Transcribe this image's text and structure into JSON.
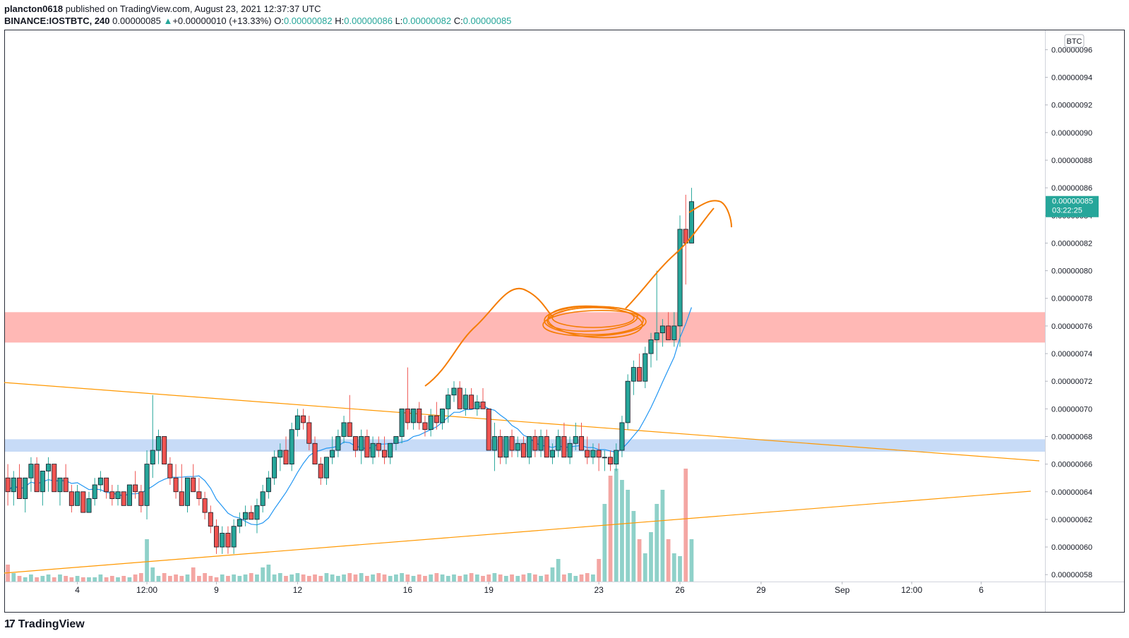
{
  "header": {
    "user": "plancton0618",
    "published_text": "published on TradingView.com, August 23, 2021 12:37:37 UTC",
    "symbol": "BINANCE:IOSTBTC, 240",
    "last": "0.00000085",
    "change_arrow": "▲",
    "change": "+0.00000010 (+13.33%)",
    "o_label": "O:",
    "o_value": "0.00000082",
    "h_label": "H:",
    "h_value": "0.00000086",
    "l_label": "L:",
    "l_value": "0.00000082",
    "c_label": "C:",
    "c_value": "0.00000085"
  },
  "colors": {
    "up": "#26a69a",
    "down": "#ef5350",
    "ma": "#2196f3",
    "trend": "#ff9800",
    "zone_resistance": "#ffb8b5",
    "zone_support": "#c7dbf7",
    "vol_up": "#8fd1c9",
    "vol_down": "#f4a6a3",
    "drawing": "#f57c00"
  },
  "footer": {
    "logo_text": "TradingView",
    "logo_icon": "tradingview-logo-icon"
  },
  "chart_data": {
    "type": "candlestick",
    "interval": "240",
    "currency_label": "BTC",
    "current_price_label": "0.00000085",
    "countdown": "03:22:25",
    "y_ticks": [
      "0.00000096",
      "0.00000094",
      "0.00000092",
      "0.00000090",
      "0.00000088",
      "0.00000086",
      "0.00000084",
      "0.00000082",
      "0.00000080",
      "0.00000078",
      "0.00000076",
      "0.00000074",
      "0.00000072",
      "0.00000070",
      "0.00000068",
      "0.00000066",
      "0.00000064",
      "0.00000062",
      "0.00000060",
      "0.00000058"
    ],
    "ylim": [
      5.75e-07,
      9.74e-07
    ],
    "x_ticks": [
      {
        "label": "4",
        "bar": 12
      },
      {
        "label": "12:00",
        "bar": 24
      },
      {
        "label": "9",
        "bar": 36
      },
      {
        "label": "12",
        "bar": 50
      },
      {
        "label": "16",
        "bar": 69
      },
      {
        "label": "19",
        "bar": 83
      },
      {
        "label": "23",
        "bar": 102
      },
      {
        "label": "26",
        "bar": 116
      },
      {
        "label": "29",
        "bar": 130
      },
      {
        "label": "Sep",
        "bar": 144
      },
      {
        "label": "12:00",
        "bar": 156
      },
      {
        "label": "6",
        "bar": 168
      }
    ],
    "x_range_bars": [
      -0.5,
      179
    ],
    "candles": [
      [
        65,
        66,
        63,
        64
      ],
      [
        64,
        65.5,
        63,
        65
      ],
      [
        65,
        66,
        63.5,
        63.5
      ],
      [
        63.5,
        65,
        62.5,
        65
      ],
      [
        65,
        66.5,
        64,
        66
      ],
      [
        66,
        66.5,
        64,
        64
      ],
      [
        64,
        65.5,
        63,
        65.5
      ],
      [
        65.5,
        66.5,
        64,
        66
      ],
      [
        66,
        66,
        64,
        64
      ],
      [
        64,
        65,
        63,
        65
      ],
      [
        65,
        66,
        64,
        64
      ],
      [
        64,
        64.5,
        62.5,
        63
      ],
      [
        63,
        64.5,
        63,
        64
      ],
      [
        64,
        64,
        62.5,
        62.5
      ],
      [
        62.5,
        64,
        62.5,
        63.5
      ],
      [
        63.5,
        65,
        63,
        64.5
      ],
      [
        64.5,
        65.5,
        64,
        65
      ],
      [
        65,
        65,
        63.5,
        64
      ],
      [
        64,
        64.5,
        63,
        63.5
      ],
      [
        63.5,
        64.5,
        63,
        64
      ],
      [
        64,
        64,
        63,
        63
      ],
      [
        63,
        64.5,
        63,
        64.5
      ],
      [
        64.5,
        65.5,
        63.5,
        64
      ],
      [
        64,
        64.5,
        62.5,
        63
      ],
      [
        63,
        67,
        62,
        66
      ],
      [
        66,
        71,
        65,
        67
      ],
      [
        67,
        68.5,
        66,
        68
      ],
      [
        68,
        68,
        66,
        66
      ],
      [
        66,
        66.5,
        64.5,
        65
      ],
      [
        65,
        66,
        63.5,
        64
      ],
      [
        64,
        66,
        63,
        63
      ],
      [
        63,
        65,
        62.5,
        65
      ],
      [
        65,
        66,
        64,
        64
      ],
      [
        64,
        65,
        63,
        63.5
      ],
      [
        63.5,
        64,
        62,
        62.5
      ],
      [
        62.5,
        63,
        61,
        61.5
      ],
      [
        61.5,
        62,
        59.5,
        60
      ],
      [
        60,
        61.5,
        59.5,
        61
      ],
      [
        61,
        61.5,
        59.5,
        60
      ],
      [
        60,
        62,
        59.5,
        61.5
      ],
      [
        61.5,
        62.5,
        61,
        62
      ],
      [
        62,
        63,
        61.5,
        62.5
      ],
      [
        62.5,
        63,
        62,
        62
      ],
      [
        62,
        63.5,
        61,
        63
      ],
      [
        63,
        64.5,
        62.5,
        64
      ],
      [
        64,
        65.5,
        63.5,
        65
      ],
      [
        65,
        67,
        64.5,
        66.5
      ],
      [
        66.5,
        67.5,
        65.5,
        67
      ],
      [
        67,
        68,
        66,
        66
      ],
      [
        66,
        69,
        65.5,
        68.5
      ],
      [
        68.5,
        70,
        68,
        69.5
      ],
      [
        69.5,
        70,
        68.5,
        69
      ],
      [
        69,
        69.5,
        67,
        67.5
      ],
      [
        67.5,
        68,
        66,
        66
      ],
      [
        66,
        66.5,
        64.5,
        65
      ],
      [
        65,
        66.5,
        64.5,
        66.5
      ],
      [
        66.5,
        68,
        66,
        67
      ],
      [
        67,
        68.5,
        66.5,
        68
      ],
      [
        68,
        69.5,
        67.5,
        69
      ],
      [
        69,
        71,
        68,
        68
      ],
      [
        68,
        68,
        66.5,
        67
      ],
      [
        67,
        68.5,
        66,
        68
      ],
      [
        68,
        68.5,
        66.5,
        66.5
      ],
      [
        66.5,
        68,
        66,
        67.5
      ],
      [
        67.5,
        68,
        66.5,
        67
      ],
      [
        67,
        68,
        66,
        66.5
      ],
      [
        66.5,
        67.5,
        66,
        67.5
      ],
      [
        67.5,
        68,
        67,
        68
      ],
      [
        68,
        70,
        67.5,
        70
      ],
      [
        70,
        73,
        68.5,
        69
      ],
      [
        69,
        70,
        68.5,
        70
      ],
      [
        70,
        70.5,
        68.5,
        69
      ],
      [
        69,
        69.5,
        68,
        68.5
      ],
      [
        68.5,
        70,
        68,
        69.5
      ],
      [
        69.5,
        70.5,
        68.5,
        69
      ],
      [
        69,
        70,
        68.5,
        70
      ],
      [
        70,
        71.5,
        69,
        71
      ],
      [
        71,
        72,
        70.5,
        71.5
      ],
      [
        71.5,
        72,
        70,
        70
      ],
      [
        70,
        71.5,
        69.5,
        71
      ],
      [
        71,
        71.5,
        70,
        70
      ],
      [
        70,
        71,
        69.5,
        70.5
      ],
      [
        70.5,
        71.5,
        70,
        70
      ],
      [
        70,
        70,
        67,
        67
      ],
      [
        67,
        69,
        65.5,
        68
      ],
      [
        68,
        68.5,
        66,
        66.5
      ],
      [
        66.5,
        68,
        66,
        68
      ],
      [
        68,
        68.5,
        66.5,
        67
      ],
      [
        67,
        68,
        66.5,
        67.5
      ],
      [
        67.5,
        68,
        66.5,
        66.5
      ],
      [
        66.5,
        68,
        66,
        68
      ],
      [
        68,
        68.5,
        66.5,
        67
      ],
      [
        67,
        68.5,
        66.5,
        68
      ],
      [
        68,
        68.5,
        66.5,
        66.5
      ],
      [
        66.5,
        67.5,
        66,
        67
      ],
      [
        67,
        68.5,
        66.5,
        68
      ],
      [
        68,
        69,
        66.5,
        66.5
      ],
      [
        66.5,
        68,
        66,
        67.5
      ],
      [
        67.5,
        69,
        67,
        68
      ],
      [
        68,
        69,
        67,
        67
      ],
      [
        67,
        68,
        66,
        66.5
      ],
      [
        66.5,
        67.5,
        66,
        67
      ],
      [
        67,
        67.5,
        65.5,
        66.5
      ],
      [
        66.5,
        67,
        65.5,
        66.5
      ],
      [
        66.5,
        67,
        65.5,
        66
      ],
      [
        66,
        67.5,
        65.5,
        67
      ],
      [
        67,
        69.5,
        66.5,
        69
      ],
      [
        69,
        72.5,
        68.5,
        72
      ],
      [
        72,
        73.5,
        71,
        73
      ],
      [
        73,
        74,
        72,
        72
      ],
      [
        72,
        74.5,
        71.5,
        74
      ],
      [
        74,
        75.5,
        73,
        75
      ],
      [
        75,
        80,
        73.5,
        75.5
      ],
      [
        75.5,
        76.5,
        74.5,
        76
      ],
      [
        76,
        77,
        75,
        75
      ],
      [
        75,
        77,
        74.5,
        76
      ],
      [
        76,
        84,
        74.5,
        83
      ],
      [
        83,
        85.5,
        79,
        82
      ],
      [
        82,
        86,
        82,
        85
      ]
    ],
    "volume_relative": [
      0.12,
      0.06,
      0.04,
      0.03,
      0.05,
      0.03,
      0.04,
      0.05,
      0.03,
      0.05,
      0.04,
      0.03,
      0.04,
      0.03,
      0.03,
      0.03,
      0.05,
      0.03,
      0.04,
      0.03,
      0.04,
      0.03,
      0.05,
      0.06,
      0.3,
      0.1,
      0.04,
      0.06,
      0.04,
      0.05,
      0.04,
      0.05,
      0.1,
      0.04,
      0.06,
      0.04,
      0.03,
      0.05,
      0.04,
      0.05,
      0.04,
      0.05,
      0.06,
      0.05,
      0.1,
      0.12,
      0.05,
      0.06,
      0.04,
      0.05,
      0.06,
      0.05,
      0.04,
      0.05,
      0.04,
      0.06,
      0.05,
      0.04,
      0.05,
      0.06,
      0.05,
      0.06,
      0.04,
      0.05,
      0.06,
      0.05,
      0.04,
      0.05,
      0.06,
      0.05,
      0.04,
      0.05,
      0.04,
      0.05,
      0.06,
      0.05,
      0.04,
      0.05,
      0.04,
      0.05,
      0.06,
      0.05,
      0.04,
      0.05,
      0.06,
      0.05,
      0.04,
      0.05,
      0.04,
      0.05,
      0.06,
      0.05,
      0.04,
      0.05,
      0.1,
      0.16,
      0.05,
      0.06,
      0.04,
      0.05,
      0.06,
      0.05,
      0.16,
      0.55,
      0.75,
      0.8,
      0.72,
      0.65,
      0.5,
      0.3,
      0.2,
      0.35,
      0.55,
      0.65,
      0.3,
      0.2,
      0.18,
      0.8,
      0.3
    ],
    "zones": [
      {
        "name": "resistance",
        "from": 7.48e-07,
        "to": 7.7e-07
      },
      {
        "name": "support",
        "from": 6.69e-07,
        "to": 6.78e-07
      }
    ]
  }
}
